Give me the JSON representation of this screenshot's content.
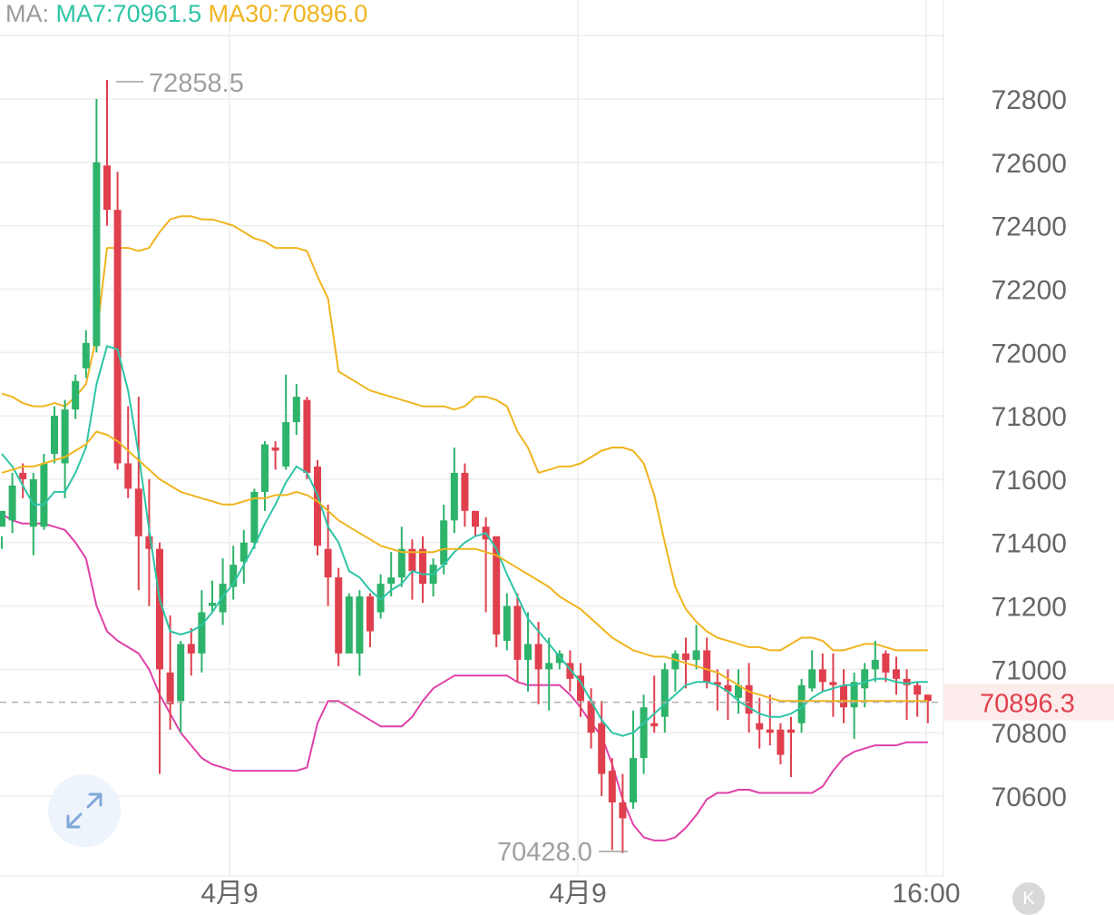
{
  "legend": {
    "ma_label": "MA:",
    "ma7": "MA7:70961.5",
    "ma30": "MA30:70896.0",
    "colors": {
      "ma_label": "#9a9a9a",
      "ma7": "#2ec4a6",
      "ma30": "#f0b41e"
    }
  },
  "annotations": {
    "high": "72858.5",
    "low": "70428.0"
  },
  "current_price": {
    "label": "70896.3",
    "value": 70896.3,
    "color": "#e0404e"
  },
  "buttons": {
    "expand_icon": "expand-arrows-icon",
    "k_label": "K"
  },
  "chart_data": {
    "type": "candlestick",
    "x_tick_labels": [
      "4月9",
      "4月9",
      "16:00"
    ],
    "y_tick_labels": [
      "72800",
      "72600",
      "72400",
      "72200",
      "72000",
      "71800",
      "71600",
      "71400",
      "71200",
      "71000",
      "70800",
      "70600"
    ],
    "ylim": [
      70380,
      73120
    ],
    "grid": true,
    "colors": {
      "up": "#2db36a",
      "down": "#e0404e",
      "ma7": "#2ec4a6",
      "ma30": "#f0b41e",
      "boll_upper": "#f0b41e",
      "boll_lower": "#e040a8",
      "grid": "#eeeeee"
    },
    "candles": [
      [
        71450,
        71500,
        71420,
        71380
      ],
      [
        71470,
        71580,
        71620,
        71430
      ],
      [
        71620,
        71600,
        71650,
        71540
      ],
      [
        71450,
        71600,
        71620,
        71360
      ],
      [
        71450,
        71650,
        71680,
        71440
      ],
      [
        71680,
        71800,
        71830,
        71650
      ],
      [
        71650,
        71820,
        71850,
        71540
      ],
      [
        71820,
        71910,
        71930,
        71790
      ],
      [
        71950,
        72030,
        72070,
        71920
      ],
      [
        72020,
        72600,
        72800,
        72000
      ],
      [
        72590,
        72450,
        72860,
        72400
      ],
      [
        72450,
        71650,
        72570,
        71630
      ],
      [
        71650,
        71570,
        71830,
        71540
      ],
      [
        71570,
        71420,
        71860,
        71250
      ],
      [
        71420,
        71380,
        71600,
        71200
      ],
      [
        71380,
        71000,
        71400,
        70670
      ],
      [
        70990,
        70890,
        71170,
        70810
      ],
      [
        70900,
        71080,
        71090,
        70800
      ],
      [
        71080,
        71050,
        71130,
        70980
      ],
      [
        71050,
        71180,
        71250,
        70990
      ],
      [
        71200,
        71210,
        71280,
        71180
      ],
      [
        71180,
        71270,
        71350,
        71140
      ],
      [
        71260,
        71330,
        71390,
        71220
      ],
      [
        71340,
        71400,
        71440,
        71270
      ],
      [
        71400,
        71560,
        71570,
        71380
      ],
      [
        71560,
        71710,
        71720,
        71500
      ],
      [
        71700,
        71690,
        71720,
        71630
      ],
      [
        71640,
        71780,
        71930,
        71630
      ],
      [
        71780,
        71860,
        71900,
        71740
      ],
      [
        71850,
        71620,
        71860,
        71600
      ],
      [
        71640,
        71390,
        71660,
        71360
      ],
      [
        71380,
        71290,
        71520,
        71200
      ],
      [
        71290,
        71050,
        71320,
        71010
      ],
      [
        71050,
        71230,
        71240,
        71060
      ],
      [
        71050,
        71230,
        71250,
        70980
      ],
      [
        71230,
        71120,
        71240,
        71070
      ],
      [
        71180,
        71270,
        71300,
        71160
      ],
      [
        71270,
        71290,
        71370,
        71230
      ],
      [
        71290,
        71380,
        71450,
        71260
      ],
      [
        71380,
        71310,
        71410,
        71220
      ],
      [
        71380,
        71270,
        71420,
        71210
      ],
      [
        71270,
        71330,
        71350,
        71230
      ],
      [
        71330,
        71470,
        71520,
        71300
      ],
      [
        71470,
        71620,
        71700,
        71430
      ],
      [
        71620,
        71500,
        71650,
        71450
      ],
      [
        71500,
        71450,
        71500,
        71420
      ],
      [
        71450,
        71410,
        71480,
        71180
      ],
      [
        71420,
        71110,
        71400,
        71070
      ],
      [
        71090,
        71200,
        71240,
        71060
      ],
      [
        71200,
        71030,
        71240,
        70960
      ],
      [
        71030,
        71080,
        71180,
        70930
      ],
      [
        71080,
        71000,
        71150,
        70890
      ],
      [
        71000,
        71020,
        71100,
        70870
      ],
      [
        71020,
        71050,
        71060,
        71000
      ],
      [
        71020,
        70970,
        71060,
        70930
      ],
      [
        70980,
        70900,
        71020,
        70850
      ],
      [
        70900,
        70800,
        70940,
        70750
      ],
      [
        70830,
        70670,
        70900,
        70600
      ],
      [
        70680,
        70580,
        70720,
        70430
      ],
      [
        70580,
        70530,
        70670,
        70420
      ],
      [
        70580,
        70720,
        70870,
        70560
      ],
      [
        70720,
        70880,
        70920,
        70670
      ],
      [
        70830,
        70820,
        70980,
        70800
      ],
      [
        70850,
        71000,
        71020,
        70800
      ],
      [
        71000,
        71050,
        71060,
        70930
      ],
      [
        71050,
        71030,
        71100,
        70940
      ],
      [
        71030,
        71060,
        71140,
        71000
      ],
      [
        71060,
        70960,
        71100,
        70940
      ],
      [
        70960,
        70950,
        71000,
        70870
      ],
      [
        70950,
        70930,
        71000,
        70840
      ],
      [
        70910,
        70950,
        71000,
        70860
      ],
      [
        70950,
        70860,
        71020,
        70800
      ],
      [
        70830,
        70810,
        70910,
        70750
      ],
      [
        70810,
        70800,
        70920,
        70760
      ],
      [
        70810,
        70730,
        70830,
        70700
      ],
      [
        70810,
        70800,
        70850,
        70660
      ],
      [
        70830,
        70950,
        70970,
        70800
      ],
      [
        70940,
        71000,
        71060,
        70930
      ],
      [
        71000,
        70960,
        71050,
        70930
      ],
      [
        70960,
        70950,
        71050,
        70850
      ],
      [
        70950,
        70880,
        71000,
        70830
      ],
      [
        70880,
        70960,
        70990,
        70780
      ],
      [
        70940,
        71000,
        71020,
        70880
      ],
      [
        71000,
        71030,
        71090,
        70960
      ],
      [
        71050,
        70990,
        71060,
        70960
      ],
      [
        71000,
        70970,
        71040,
        70920
      ],
      [
        70970,
        70950,
        71000,
        70840
      ],
      [
        70950,
        70920,
        70960,
        70850
      ],
      [
        70920,
        70900,
        70920,
        70830
      ]
    ],
    "ma7": [
      71680,
      71640,
      71580,
      71520,
      71520,
      71560,
      71560,
      71620,
      71700,
      71900,
      72020,
      72010,
      71880,
      71680,
      71440,
      71220,
      71120,
      71110,
      71120,
      71140,
      71180,
      71230,
      71270,
      71330,
      71390,
      71460,
      71520,
      71590,
      71640,
      71620,
      71550,
      71450,
      71400,
      71310,
      71290,
      71250,
      71220,
      71250,
      71270,
      71310,
      71300,
      71300,
      71330,
      71370,
      71400,
      71420,
      71430,
      71380,
      71300,
      71230,
      71160,
      71120,
      71080,
      71040,
      71000,
      70960,
      70900,
      70840,
      70800,
      70790,
      70800,
      70830,
      70860,
      70890,
      70920,
      70950,
      70960,
      70960,
      70950,
      70930,
      70900,
      70880,
      70860,
      70850,
      70850,
      70860,
      70880,
      70910,
      70930,
      70940,
      70950,
      70950,
      70960,
      70970,
      70970,
      70960,
      70955,
      70960,
      70960
    ],
    "ma30": [
      71620,
      71630,
      71640,
      71640,
      71650,
      71660,
      71670,
      71690,
      71710,
      71750,
      71740,
      71720,
      71690,
      71660,
      71630,
      71600,
      71580,
      71560,
      71550,
      71540,
      71530,
      71520,
      71520,
      71530,
      71540,
      71540,
      71550,
      71550,
      71560,
      71550,
      71530,
      71500,
      71470,
      71450,
      71430,
      71410,
      71390,
      71380,
      71370,
      71370,
      71370,
      71370,
      71380,
      71380,
      71380,
      71380,
      71370,
      71360,
      71340,
      71320,
      71300,
      71280,
      71260,
      71230,
      71210,
      71190,
      71160,
      71130,
      71100,
      71080,
      71060,
      71050,
      71040,
      71040,
      71030,
      71020,
      71010,
      71000,
      70990,
      70970,
      70950,
      70930,
      70920,
      70910,
      70900,
      70900,
      70900,
      70900,
      70900,
      70900,
      70900,
      70900,
      70900,
      70900,
      70900,
      70900,
      70900,
      70900,
      70900
    ],
    "boll_upper": [
      71870,
      71860,
      71840,
      71830,
      71830,
      71840,
      71830,
      71860,
      71900,
      72050,
      72330,
      72330,
      72330,
      72320,
      72330,
      72380,
      72420,
      72430,
      72430,
      72420,
      72420,
      72410,
      72400,
      72380,
      72360,
      72350,
      72330,
      72330,
      72330,
      72320,
      72240,
      72170,
      71940,
      71920,
      71900,
      71880,
      71870,
      71860,
      71850,
      71840,
      71830,
      71830,
      71830,
      71820,
      71830,
      71860,
      71860,
      71850,
      71830,
      71750,
      71700,
      71620,
      71630,
      71640,
      71640,
      71650,
      71670,
      71690,
      71700,
      71700,
      71690,
      71650,
      71550,
      71400,
      71260,
      71190,
      71150,
      71120,
      71100,
      71090,
      71080,
      71070,
      71070,
      71060,
      71060,
      71080,
      71100,
      71100,
      71090,
      71060,
      71060,
      71070,
      71080,
      71080,
      71070,
      71060,
      71060,
      71060,
      71060
    ],
    "boll_lower": [
      71490,
      71470,
      71460,
      71460,
      71460,
      71450,
      71440,
      71400,
      71350,
      71200,
      71120,
      71090,
      71070,
      71050,
      71000,
      70920,
      70860,
      70800,
      70760,
      70720,
      70700,
      70690,
      70680,
      70680,
      70680,
      70680,
      70680,
      70680,
      70680,
      70690,
      70830,
      70900,
      70900,
      70880,
      70860,
      70840,
      70820,
      70820,
      70820,
      70850,
      70900,
      70940,
      70960,
      70980,
      70980,
      70980,
      70980,
      70980,
      70980,
      70960,
      70950,
      70950,
      70950,
      70950,
      70920,
      70880,
      70830,
      70790,
      70700,
      70590,
      70510,
      70470,
      70460,
      70460,
      70470,
      70500,
      70540,
      70590,
      70610,
      70610,
      70620,
      70620,
      70610,
      70610,
      70610,
      70610,
      70610,
      70610,
      70630,
      70680,
      70720,
      70740,
      70750,
      70760,
      70760,
      70760,
      70770,
      70770,
      70770
    ]
  }
}
